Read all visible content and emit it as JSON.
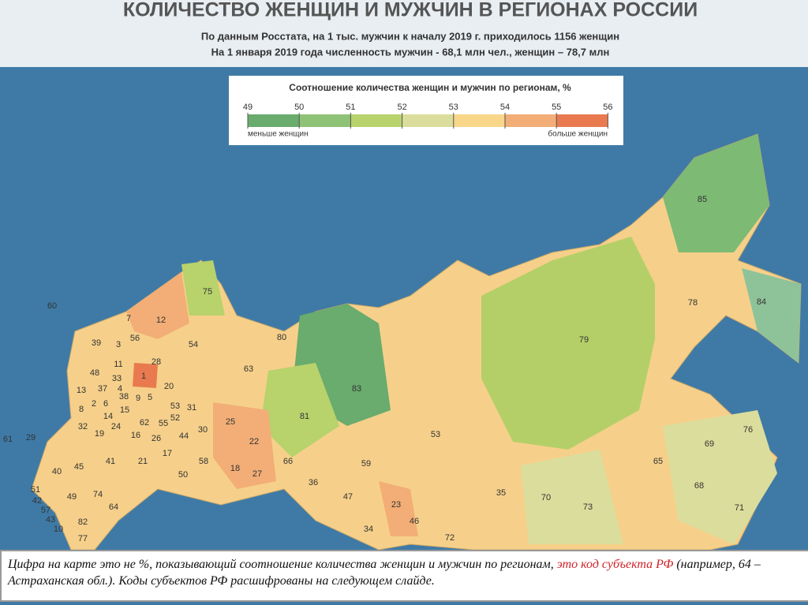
{
  "header": {
    "title": "КОЛИЧЕСТВО ЖЕНЩИН И МУЖЧИН В РЕГИОНАХ РОССИИ",
    "subtitle_lines": [
      "По данным Росстата, на 1 тыс. мужчин к началу 2019 г. приходилось 1156 женщин",
      "На 1 января 2019 года численность мужчин - 68,1 млн чел., женщин – 78,7 млн"
    ]
  },
  "legend": {
    "title": "Соотношение количества женщин и мужчин по регионам, %",
    "ticks": [
      49,
      50,
      51,
      52,
      53,
      54,
      55,
      56
    ],
    "colors": [
      "#6aab6e",
      "#8ec276",
      "#b8d26c",
      "#dbdd9c",
      "#f8d68a",
      "#f2ae76",
      "#e97a50"
    ],
    "low_label": "меньше женщин",
    "high_label": "больше женщин"
  },
  "regions": [
    "85",
    "75",
    "60",
    "7",
    "12",
    "80",
    "78",
    "84",
    "79",
    "39",
    "3",
    "56",
    "54",
    "28",
    "11",
    "63",
    "1",
    "48",
    "33",
    "37",
    "4",
    "20",
    "83",
    "13",
    "38",
    "9",
    "5",
    "8",
    "2",
    "6",
    "15",
    "53",
    "81",
    "14",
    "31",
    "52",
    "62",
    "55",
    "24",
    "32",
    "16",
    "30",
    "25",
    "44",
    "19",
    "26",
    "22",
    "53",
    "69",
    "76",
    "29",
    "61",
    "17",
    "41",
    "21",
    "58",
    "65",
    "66",
    "59",
    "45",
    "18",
    "27",
    "50",
    "40",
    "36",
    "68",
    "70",
    "35",
    "47",
    "74",
    "51",
    "42",
    "49",
    "23",
    "57",
    "64",
    "73",
    "71",
    "43",
    "82",
    "46",
    "10",
    "34",
    "77",
    "72"
  ],
  "caption": {
    "text_before": "Цифра на карте это не %, показывающий соотношение количества женщин и мужчин по регионам, ",
    "highlight": "это код субъекта РФ",
    "text_after": " (например, 64 –Астраханская обл.). Коды субъектов РФ расшифрованы на следующем слайде."
  }
}
